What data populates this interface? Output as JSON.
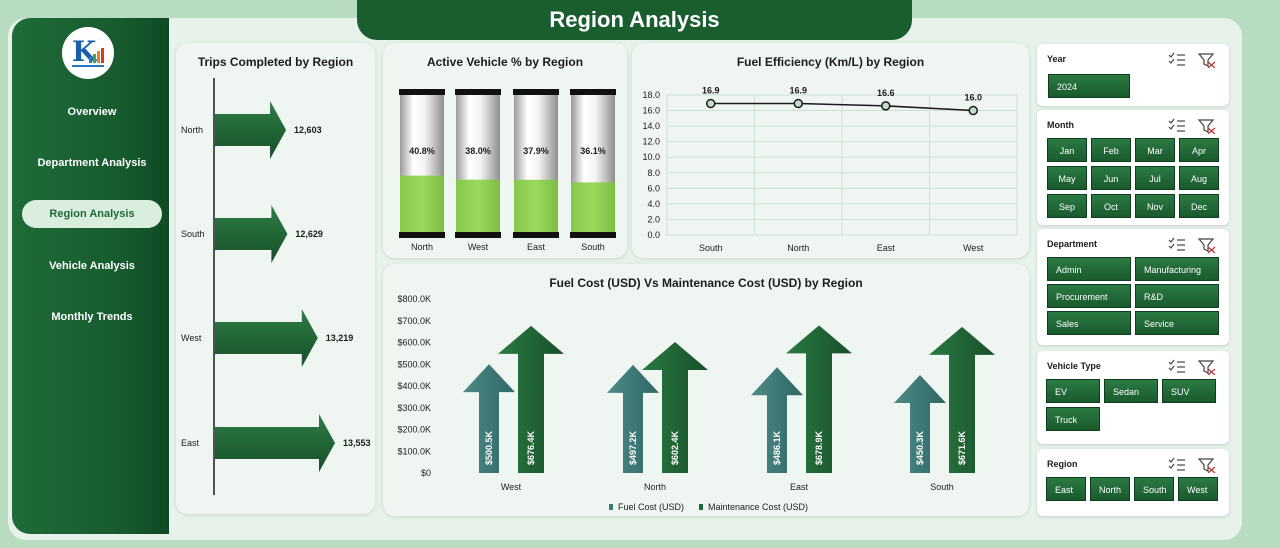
{
  "header": {
    "title": "Region Analysis"
  },
  "sidebar": {
    "items": [
      {
        "label": "Overview",
        "active": false
      },
      {
        "label": "Department Analysis",
        "active": false
      },
      {
        "label": "Region Analysis",
        "active": true
      },
      {
        "label": "Vehicle Analysis",
        "active": false
      },
      {
        "label": "Monthly Trends",
        "active": false
      }
    ]
  },
  "colors": {
    "dark_green": "#1e6b3a",
    "light_green": "#8fd05a",
    "teal": "#3b7a78",
    "panel": "#eff6f1"
  },
  "charts": {
    "trips": {
      "title": "Trips Completed by Region",
      "chart_data": {
        "type": "bar",
        "orientation": "horizontal",
        "categories": [
          "North",
          "South",
          "West",
          "East"
        ],
        "values": [
          12603,
          12629,
          13219,
          13553
        ],
        "value_labels": [
          "12,603",
          "12,629",
          "13,219",
          "13,553"
        ]
      }
    },
    "active": {
      "title": "Active Vehicle % by Region",
      "chart_data": {
        "type": "bar",
        "categories": [
          "North",
          "West",
          "East",
          "South"
        ],
        "values": [
          40.8,
          38.0,
          37.9,
          36.1
        ],
        "value_labels": [
          "40.8%",
          "38.0%",
          "37.9%",
          "36.1%"
        ],
        "ylim": [
          0,
          100
        ]
      }
    },
    "fuel_eff": {
      "title": "Fuel Efficiency (Km/L) by Region",
      "chart_data": {
        "type": "line",
        "categories": [
          "South",
          "North",
          "East",
          "West"
        ],
        "values": [
          16.9,
          16.9,
          16.6,
          16.0
        ],
        "value_labels": [
          "16.9",
          "16.9",
          "16.6",
          "16.0"
        ],
        "ylim": [
          0,
          18
        ],
        "yticks": [
          "0.0",
          "2.0",
          "4.0",
          "6.0",
          "8.0",
          "10.0",
          "12.0",
          "14.0",
          "16.0",
          "18.0"
        ],
        "grid": true
      }
    },
    "cost": {
      "title": "Fuel Cost (USD) Vs Maintenance Cost (USD) by Region",
      "chart_data": {
        "type": "bar",
        "categories": [
          "West",
          "North",
          "East",
          "South"
        ],
        "series": [
          {
            "name": "Fuel Cost (USD)",
            "values": [
              500.5,
              497.2,
              486.1,
              450.3
            ],
            "labels": [
              "$500.5K",
              "$497.2K",
              "$486.1K",
              "$450.3K"
            ]
          },
          {
            "name": "Maintenance Cost (USD)",
            "values": [
              676.4,
              602.4,
              678.9,
              671.6
            ],
            "labels": [
              "$676.4K",
              "$602.4K",
              "$678.9K",
              "$671.6K"
            ]
          }
        ],
        "ylim": [
          0,
          800
        ],
        "yticks": [
          "$0",
          "$100.0K",
          "$200.0K",
          "$300.0K",
          "$400.0K",
          "$500.0K",
          "$600.0K",
          "$700.0K",
          "$800.0K"
        ],
        "legend": "bottom"
      }
    }
  },
  "slicers": {
    "year": {
      "title": "Year",
      "options": [
        "2024"
      ]
    },
    "month": {
      "title": "Month",
      "options": [
        "Jan",
        "Feb",
        "Mar",
        "Apr",
        "May",
        "Jun",
        "Jul",
        "Aug",
        "Sep",
        "Oct",
        "Nov",
        "Dec"
      ]
    },
    "department": {
      "title": "Department",
      "options": [
        "Admin",
        "Manufacturing",
        "Procurement",
        "R&D",
        "Sales",
        "Service"
      ]
    },
    "vehicle_type": {
      "title": "Vehicle Type",
      "options": [
        "EV",
        "Sedan",
        "SUV",
        "Truck"
      ]
    },
    "region": {
      "title": "Region",
      "options": [
        "East",
        "North",
        "South",
        "West"
      ]
    }
  }
}
